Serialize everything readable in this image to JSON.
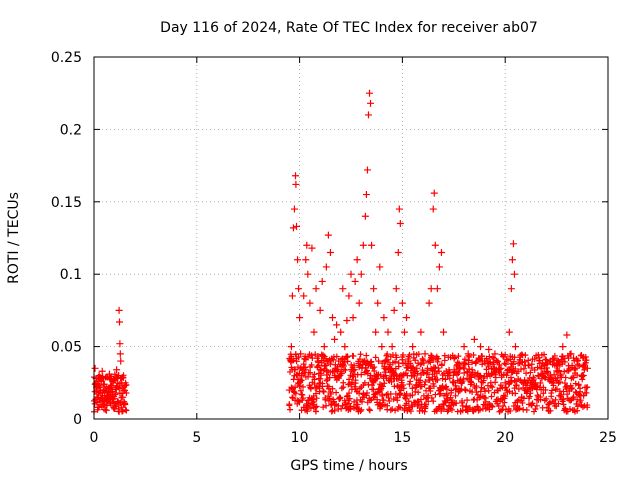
{
  "chart_data": {
    "type": "scatter",
    "title": "Day 116 of 2024, Rate Of TEC Index for receiver ab07",
    "xlabel": "GPS time / hours",
    "ylabel": "ROTI / TECUs",
    "xlim": [
      0,
      25
    ],
    "ylim": [
      0,
      0.25
    ],
    "xticks": [
      0,
      5,
      10,
      15,
      20,
      25
    ],
    "xtick_labels": [
      "0",
      "5",
      "10",
      "15",
      "20",
      "25"
    ],
    "yticks": [
      0,
      0.05,
      0.1,
      0.15,
      0.2,
      0.25
    ],
    "ytick_labels": [
      "0",
      "0.05",
      "0.1",
      "0.15",
      "0.2",
      "0.25"
    ],
    "grid": true,
    "legend": "none",
    "marker": "+",
    "color": "#ff0000",
    "series": [
      {
        "values": [
          [
            0.05,
            0.035
          ],
          [
            0.1,
            0.028
          ],
          [
            0.15,
            0.022
          ],
          [
            0.2,
            0.015
          ],
          [
            0.25,
            0.03
          ],
          [
            0.3,
            0.012
          ],
          [
            0.35,
            0.026
          ],
          [
            0.4,
            0.018
          ],
          [
            0.45,
            0.01
          ],
          [
            0.5,
            0.024
          ],
          [
            0.55,
            0.02
          ],
          [
            0.6,
            0.013
          ],
          [
            0.65,
            0.029
          ],
          [
            0.7,
            0.016
          ],
          [
            0.75,
            0.031
          ],
          [
            0.8,
            0.011
          ],
          [
            0.85,
            0.023
          ],
          [
            0.9,
            0.019
          ],
          [
            0.95,
            0.014
          ],
          [
            1.0,
            0.027
          ],
          [
            1.05,
            0.018
          ],
          [
            1.1,
            0.022
          ],
          [
            1.15,
            0.012
          ],
          [
            1.2,
            0.03
          ],
          [
            1.22,
            0.075
          ],
          [
            1.24,
            0.067
          ],
          [
            1.26,
            0.052
          ],
          [
            1.28,
            0.045
          ],
          [
            1.3,
            0.04
          ],
          [
            1.35,
            0.025
          ],
          [
            1.4,
            0.015
          ],
          [
            1.45,
            0.02
          ],
          [
            1.5,
            0.01
          ],
          [
            0.2,
            0.008
          ],
          [
            0.6,
            0.006
          ],
          [
            1.0,
            0.009
          ],
          [
            0.4,
            0.033
          ],
          [
            0.8,
            0.028
          ],
          [
            1.1,
            0.034
          ],
          [
            0.3,
            0.02
          ],
          [
            9.5,
            0.02
          ],
          [
            9.6,
            0.05
          ],
          [
            9.65,
            0.085
          ],
          [
            9.7,
            0.132
          ],
          [
            9.75,
            0.145
          ],
          [
            9.8,
            0.168
          ],
          [
            9.82,
            0.162
          ],
          [
            9.85,
            0.133
          ],
          [
            9.9,
            0.11
          ],
          [
            9.95,
            0.09
          ],
          [
            10.0,
            0.07
          ],
          [
            10.05,
            0.045
          ],
          [
            10.1,
            0.03
          ],
          [
            10.2,
            0.085
          ],
          [
            10.3,
            0.11
          ],
          [
            10.35,
            0.12
          ],
          [
            10.4,
            0.1
          ],
          [
            10.5,
            0.08
          ],
          [
            10.6,
            0.118
          ],
          [
            10.7,
            0.06
          ],
          [
            10.8,
            0.09
          ],
          [
            10.9,
            0.04
          ],
          [
            11.0,
            0.075
          ],
          [
            11.1,
            0.095
          ],
          [
            11.2,
            0.05
          ],
          [
            11.3,
            0.105
          ],
          [
            11.4,
            0.127
          ],
          [
            11.5,
            0.115
          ],
          [
            11.6,
            0.07
          ],
          [
            11.7,
            0.055
          ],
          [
            11.8,
            0.065
          ],
          [
            11.9,
            0.04
          ],
          [
            12.0,
            0.06
          ],
          [
            12.1,
            0.09
          ],
          [
            12.2,
            0.05
          ],
          [
            12.3,
            0.068
          ],
          [
            12.4,
            0.085
          ],
          [
            12.5,
            0.1
          ],
          [
            12.6,
            0.07
          ],
          [
            12.7,
            0.095
          ],
          [
            12.8,
            0.11
          ],
          [
            12.9,
            0.08
          ],
          [
            13.0,
            0.1
          ],
          [
            13.1,
            0.12
          ],
          [
            13.2,
            0.14
          ],
          [
            13.25,
            0.155
          ],
          [
            13.3,
            0.172
          ],
          [
            13.35,
            0.21
          ],
          [
            13.4,
            0.225
          ],
          [
            13.45,
            0.218
          ],
          [
            13.5,
            0.12
          ],
          [
            13.6,
            0.09
          ],
          [
            13.7,
            0.06
          ],
          [
            13.8,
            0.08
          ],
          [
            13.9,
            0.105
          ],
          [
            14.0,
            0.05
          ],
          [
            14.1,
            0.07
          ],
          [
            14.2,
            0.04
          ],
          [
            14.3,
            0.06
          ],
          [
            14.4,
            0.035
          ],
          [
            14.5,
            0.05
          ],
          [
            14.6,
            0.075
          ],
          [
            14.7,
            0.09
          ],
          [
            14.8,
            0.115
          ],
          [
            14.85,
            0.145
          ],
          [
            14.9,
            0.135
          ],
          [
            15.0,
            0.08
          ],
          [
            15.1,
            0.06
          ],
          [
            15.2,
            0.07
          ],
          [
            15.3,
            0.04
          ],
          [
            15.5,
            0.05
          ],
          [
            15.7,
            0.035
          ],
          [
            15.9,
            0.06
          ],
          [
            16.1,
            0.045
          ],
          [
            16.3,
            0.08
          ],
          [
            16.4,
            0.09
          ],
          [
            16.5,
            0.145
          ],
          [
            16.55,
            0.156
          ],
          [
            16.6,
            0.12
          ],
          [
            16.7,
            0.09
          ],
          [
            16.8,
            0.105
          ],
          [
            16.9,
            0.115
          ],
          [
            17.0,
            0.06
          ],
          [
            17.2,
            0.03
          ],
          [
            17.5,
            0.025
          ],
          [
            17.8,
            0.035
          ],
          [
            18.0,
            0.05
          ],
          [
            18.2,
            0.045
          ],
          [
            18.5,
            0.055
          ],
          [
            18.8,
            0.05
          ],
          [
            19.0,
            0.04
          ],
          [
            19.2,
            0.048
          ],
          [
            19.5,
            0.045
          ],
          [
            19.8,
            0.035
          ],
          [
            20.0,
            0.025
          ],
          [
            20.2,
            0.06
          ],
          [
            20.3,
            0.09
          ],
          [
            20.35,
            0.11
          ],
          [
            20.4,
            0.121
          ],
          [
            20.45,
            0.1
          ],
          [
            20.5,
            0.05
          ],
          [
            20.8,
            0.015
          ],
          [
            21.0,
            0.02
          ],
          [
            21.3,
            0.025
          ],
          [
            21.6,
            0.03
          ],
          [
            21.9,
            0.035
          ],
          [
            22.2,
            0.04
          ],
          [
            22.5,
            0.038
          ],
          [
            22.8,
            0.05
          ],
          [
            23.0,
            0.058
          ],
          [
            23.2,
            0.045
          ],
          [
            23.5,
            0.04
          ],
          [
            23.8,
            0.03
          ],
          [
            24.0,
            0.035
          ]
        ]
      }
    ]
  }
}
